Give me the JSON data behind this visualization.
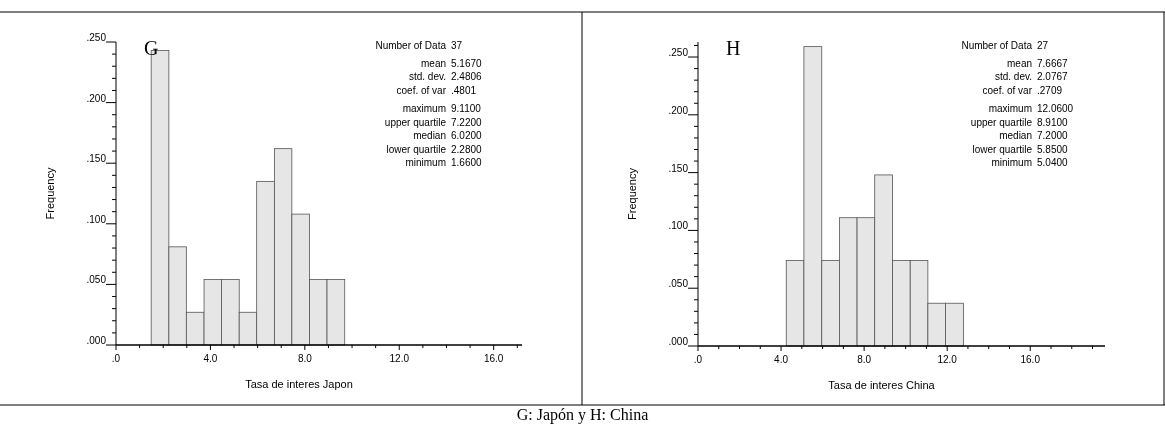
{
  "chart_data": [
    {
      "type": "histogram",
      "title": "G",
      "xlabel": "Tasa de interes Japon",
      "ylabel": "Frequency",
      "color": "#e6e6e6",
      "bins": [
        1.49,
        2.24,
        2.98,
        3.73,
        4.47,
        5.22,
        5.96,
        6.71,
        7.45,
        8.2,
        8.94,
        9.69
      ],
      "values": [
        0.243,
        0.081,
        0.027,
        0.054,
        0.054,
        0.027,
        0.135,
        0.162,
        0.108,
        0.054,
        0.054
      ],
      "xlim": [
        0,
        17.2
      ],
      "ylim": [
        0,
        0.25
      ],
      "xticks": [
        {
          "value": 0,
          "label": ".0"
        },
        {
          "value": 1,
          "label": null
        },
        {
          "value": 2,
          "label": null
        },
        {
          "value": 3,
          "label": null
        },
        {
          "value": 4,
          "label": "4.0"
        },
        {
          "value": 5,
          "label": null
        },
        {
          "value": 6,
          "label": null
        },
        {
          "value": 7,
          "label": null
        },
        {
          "value": 8,
          "label": "8.0"
        },
        {
          "value": 9,
          "label": null
        },
        {
          "value": 10,
          "label": null
        },
        {
          "value": 11,
          "label": null
        },
        {
          "value": 12,
          "label": "12.0"
        },
        {
          "value": 13,
          "label": null
        },
        {
          "value": 14,
          "label": null
        },
        {
          "value": 15,
          "label": null
        },
        {
          "value": 16,
          "label": "16.0"
        },
        {
          "value": 17,
          "label": null
        }
      ],
      "yticks": [
        {
          "value": 0,
          "label": ".000"
        },
        {
          "value": 0.01,
          "label": null
        },
        {
          "value": 0.02,
          "label": null
        },
        {
          "value": 0.03,
          "label": null
        },
        {
          "value": 0.04,
          "label": null
        },
        {
          "value": 0.05,
          "label": ".050"
        },
        {
          "value": 0.06,
          "label": null
        },
        {
          "value": 0.07,
          "label": null
        },
        {
          "value": 0.08,
          "label": null
        },
        {
          "value": 0.09,
          "label": null
        },
        {
          "value": 0.1,
          "label": ".100"
        },
        {
          "value": 0.11,
          "label": null
        },
        {
          "value": 0.12,
          "label": null
        },
        {
          "value": 0.13,
          "label": null
        },
        {
          "value": 0.14,
          "label": null
        },
        {
          "value": 0.15,
          "label": ".150"
        },
        {
          "value": 0.16,
          "label": null
        },
        {
          "value": 0.17,
          "label": null
        },
        {
          "value": 0.18,
          "label": null
        },
        {
          "value": 0.19,
          "label": null
        },
        {
          "value": 0.2,
          "label": ".200"
        },
        {
          "value": 0.21,
          "label": null
        },
        {
          "value": 0.22,
          "label": null
        },
        {
          "value": 0.23,
          "label": null
        },
        {
          "value": 0.24,
          "label": null
        },
        {
          "value": 0.25,
          "label": ".250"
        }
      ],
      "grid": false,
      "annotations": [
        "Number of Data",
        "37",
        "mean",
        "5.1670",
        "std. dev.",
        "2.4806",
        "coef. of var",
        ".4801",
        "maximum",
        "9.1100",
        "upper quartile",
        "7.2200",
        "median",
        "6.0200",
        "lower quartile",
        "2.2800",
        "minimum",
        "1.6600"
      ]
    },
    {
      "type": "histogram",
      "title": "H",
      "xlabel": "Tasa de interes China",
      "ylabel": "Frequency",
      "color": "#e6e6e6",
      "bins": [
        4.25,
        5.1,
        5.96,
        6.81,
        7.66,
        8.51,
        9.37,
        10.22,
        11.07,
        11.92,
        12.78
      ],
      "values": [
        0.074,
        0.259,
        0.074,
        0.111,
        0.111,
        0.148,
        0.074,
        0.074,
        0.037,
        0.037
      ],
      "xlim": [
        0,
        19.6
      ],
      "ylim": [
        0,
        0.263
      ],
      "xticks": [
        {
          "value": 0,
          "label": ".0"
        },
        {
          "value": 1,
          "label": null
        },
        {
          "value": 2,
          "label": null
        },
        {
          "value": 3,
          "label": null
        },
        {
          "value": 4,
          "label": "4.0"
        },
        {
          "value": 5,
          "label": null
        },
        {
          "value": 6,
          "label": null
        },
        {
          "value": 7,
          "label": null
        },
        {
          "value": 8,
          "label": "8.0"
        },
        {
          "value": 9,
          "label": null
        },
        {
          "value": 10,
          "label": null
        },
        {
          "value": 11,
          "label": null
        },
        {
          "value": 12,
          "label": "12.0"
        },
        {
          "value": 13,
          "label": null
        },
        {
          "value": 14,
          "label": null
        },
        {
          "value": 15,
          "label": null
        },
        {
          "value": 16,
          "label": "16.0"
        },
        {
          "value": 17,
          "label": null
        },
        {
          "value": 18,
          "label": null
        },
        {
          "value": 19,
          "label": null
        }
      ],
      "yticks": [
        {
          "value": 0,
          "label": ".000"
        },
        {
          "value": 0.01,
          "label": null
        },
        {
          "value": 0.02,
          "label": null
        },
        {
          "value": 0.03,
          "label": null
        },
        {
          "value": 0.04,
          "label": null
        },
        {
          "value": 0.05,
          "label": ".050"
        },
        {
          "value": 0.06,
          "label": null
        },
        {
          "value": 0.07,
          "label": null
        },
        {
          "value": 0.08,
          "label": null
        },
        {
          "value": 0.09,
          "label": null
        },
        {
          "value": 0.1,
          "label": ".100"
        },
        {
          "value": 0.11,
          "label": null
        },
        {
          "value": 0.12,
          "label": null
        },
        {
          "value": 0.13,
          "label": null
        },
        {
          "value": 0.14,
          "label": null
        },
        {
          "value": 0.15,
          "label": ".150"
        },
        {
          "value": 0.16,
          "label": null
        },
        {
          "value": 0.17,
          "label": null
        },
        {
          "value": 0.18,
          "label": null
        },
        {
          "value": 0.19,
          "label": null
        },
        {
          "value": 0.2,
          "label": ".200"
        },
        {
          "value": 0.21,
          "label": null
        },
        {
          "value": 0.22,
          "label": null
        },
        {
          "value": 0.23,
          "label": null
        },
        {
          "value": 0.24,
          "label": null
        },
        {
          "value": 0.25,
          "label": ".250"
        },
        {
          "value": 0.26,
          "label": null
        }
      ],
      "grid": false,
      "annotations": [
        "Number of Data",
        "27",
        "mean",
        "7.6667",
        "std. dev.",
        "2.0767",
        "coef. of var",
        ".2709",
        "maximum",
        "12.0600",
        "upper quartile",
        "8.9100",
        "median",
        "7.2000",
        "lower quartile",
        "5.8500",
        "minimum",
        "5.0400"
      ]
    },
    {
      "type": "other",
      "annotations": [
        "G: Japón y H: China"
      ]
    }
  ]
}
